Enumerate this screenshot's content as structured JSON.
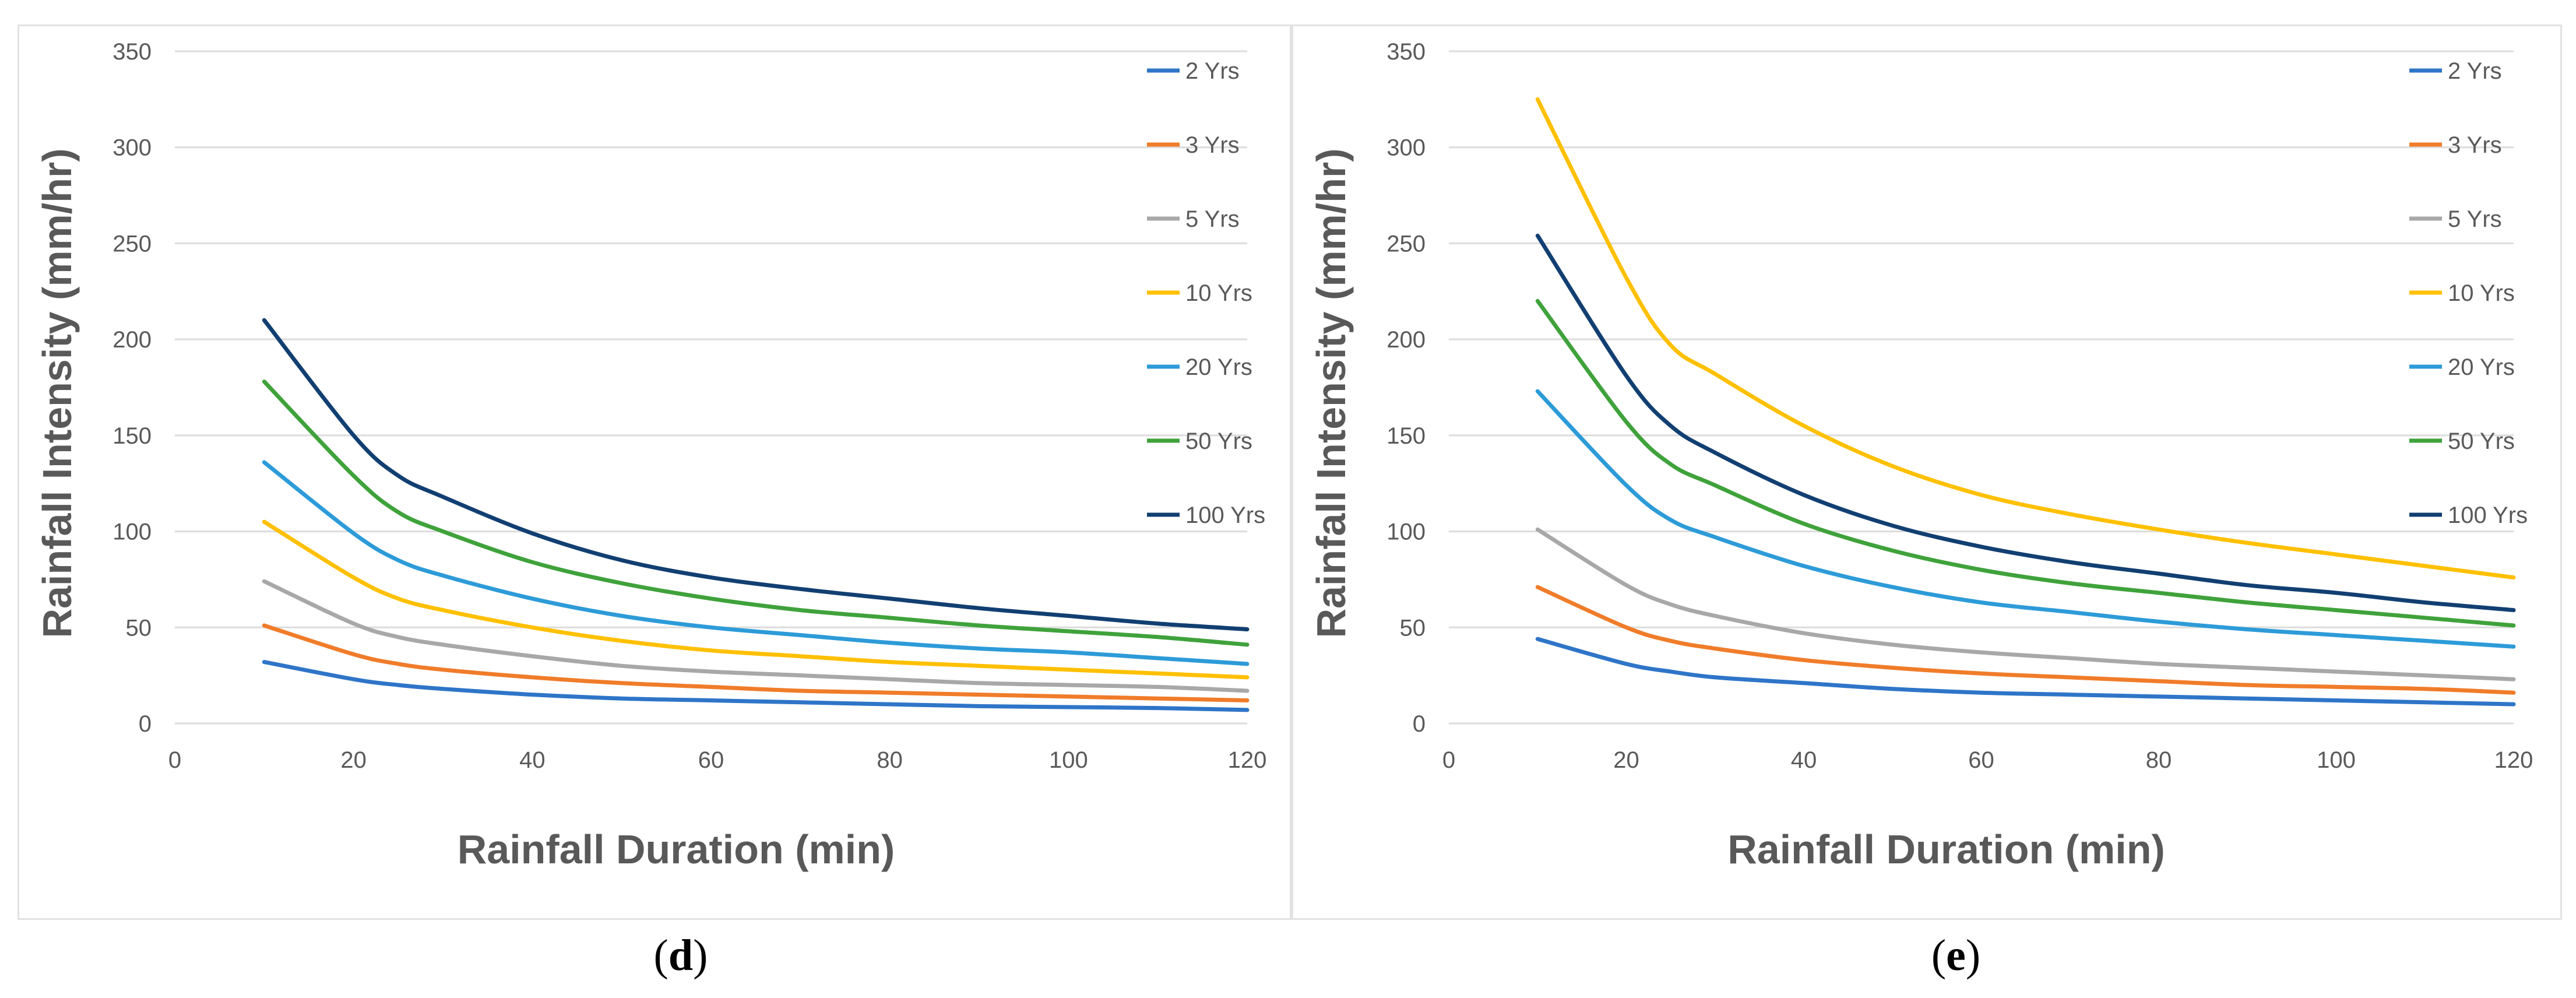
{
  "chart_data": [
    {
      "type": "line",
      "panel_label": "d",
      "xlabel": "Rainfall Duration (min)",
      "ylabel": "Rainfall Intensity (mm/hr)",
      "xlim": [
        0,
        120
      ],
      "ylim": [
        0,
        350
      ],
      "xticks": [
        "0",
        "20",
        "40",
        "60",
        "80",
        "100",
        "120"
      ],
      "yticks": [
        "0",
        "50",
        "100",
        "150",
        "200",
        "250",
        "300",
        "350"
      ],
      "grid": "horizontal",
      "legend": "right",
      "x": [
        10,
        20,
        25,
        30,
        40,
        50,
        60,
        70,
        80,
        90,
        100,
        110,
        120
      ],
      "series": [
        {
          "name": "2 Yrs",
          "color": "#2e75c8",
          "values": [
            32,
            23,
            20,
            18,
            15,
            13,
            12,
            11,
            10,
            9,
            8.5,
            8,
            7
          ]
        },
        {
          "name": "3 Yrs",
          "color": "#f07c2a",
          "values": [
            51,
            36,
            31,
            28,
            24,
            21,
            19,
            17,
            16,
            15,
            14,
            13,
            12
          ]
        },
        {
          "name": "5 Yrs",
          "color": "#a8a8a8",
          "values": [
            74,
            52,
            45,
            41,
            35,
            30,
            27,
            25,
            23,
            21,
            20,
            19,
            17
          ]
        },
        {
          "name": "10 Yrs",
          "color": "#ffc000",
          "values": [
            105,
            76,
            65,
            59,
            50,
            43,
            38,
            35,
            32,
            30,
            28,
            26,
            24
          ]
        },
        {
          "name": "20 Yrs",
          "color": "#2d9bd8",
          "values": [
            136,
            99,
            85,
            77,
            65,
            56,
            50,
            46,
            42,
            39,
            37,
            34,
            31
          ]
        },
        {
          "name": "50 Yrs",
          "color": "#3fa23b",
          "values": [
            178,
            129,
            110,
            100,
            84,
            73,
            65,
            59,
            55,
            51,
            48,
            45,
            41
          ]
        },
        {
          "name": "100 Yrs",
          "color": "#123f72",
          "values": [
            210,
            150,
            129,
            118,
            99,
            85,
            76,
            70,
            65,
            60,
            56,
            52,
            49
          ]
        }
      ]
    },
    {
      "type": "line",
      "panel_label": "e",
      "xlabel": "Rainfall Duration (min)",
      "ylabel": "Rainfall Intensity (mm/hr)",
      "xlim": [
        0,
        120
      ],
      "ylim": [
        0,
        350
      ],
      "xticks": [
        "0",
        "20",
        "40",
        "60",
        "80",
        "100",
        "120"
      ],
      "yticks": [
        "0",
        "50",
        "100",
        "150",
        "200",
        "250",
        "300",
        "350"
      ],
      "grid": "horizontal",
      "legend": "right",
      "x": [
        10,
        20,
        25,
        30,
        40,
        50,
        60,
        70,
        80,
        90,
        100,
        110,
        120
      ],
      "series": [
        {
          "name": "2 Yrs",
          "color": "#2e75c8",
          "values": [
            44,
            31,
            27,
            24,
            21,
            18,
            16,
            15,
            14,
            13,
            12,
            11,
            10
          ]
        },
        {
          "name": "3 Yrs",
          "color": "#f07c2a",
          "values": [
            71,
            50,
            43,
            39,
            33,
            29,
            26,
            24,
            22,
            20,
            19,
            18,
            16
          ]
        },
        {
          "name": "5 Yrs",
          "color": "#a8a8a8",
          "values": [
            101,
            72,
            62,
            56,
            47,
            41,
            37,
            34,
            31,
            29,
            27,
            25,
            23
          ]
        },
        {
          "name": "10 Yrs",
          "color": "#ffc000",
          "values": [
            325,
            232,
            197,
            182,
            155,
            134,
            119,
            109,
            101,
            94,
            88,
            82,
            76
          ]
        },
        {
          "name": "20 Yrs",
          "color": "#2d9bd8",
          "values": [
            173,
            124,
            106,
            97,
            82,
            71,
            63,
            58,
            53,
            49,
            46,
            43,
            40
          ]
        },
        {
          "name": "50 Yrs",
          "color": "#3fa23b",
          "values": [
            220,
            157,
            135,
            124,
            104,
            90,
            80,
            73,
            68,
            63,
            59,
            55,
            51
          ]
        },
        {
          "name": "100 Yrs",
          "color": "#123f72",
          "values": [
            254,
            181,
            155,
            141,
            119,
            103,
            92,
            84,
            78,
            72,
            68,
            63,
            59
          ]
        }
      ]
    }
  ]
}
